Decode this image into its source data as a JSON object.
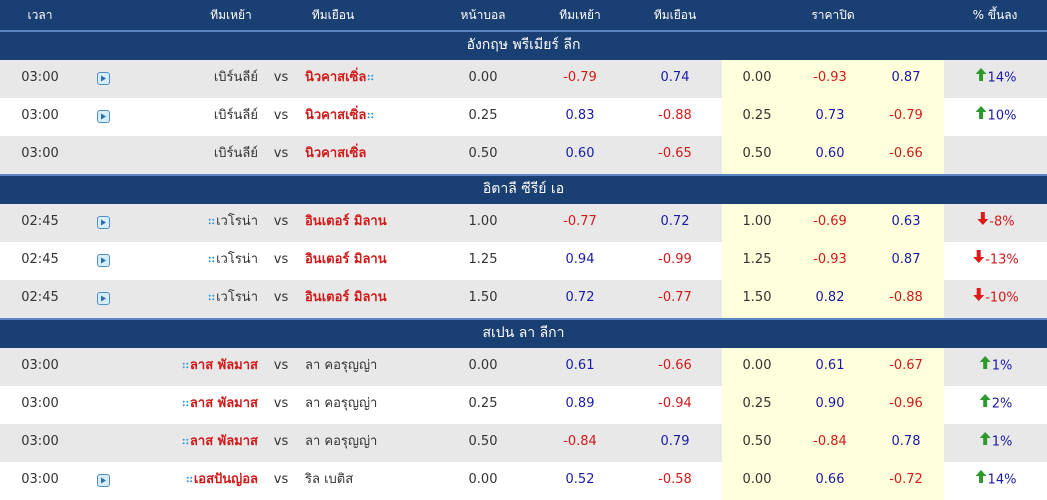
{
  "header": {
    "time": "เวลา",
    "home": "ทีมเหย้า",
    "away": "ทีมเยือน",
    "handicap": "หน้าบอล",
    "home_odds": "ทีมเหย้า",
    "away_odds": "ทีมเยือน",
    "closing": "ราคาปิด",
    "pct_change": "% ขึ้นลง"
  },
  "vs_label": "vs",
  "colors": {
    "header_bg": "#1a3f72",
    "negative": "#d11a1a",
    "positive": "#1a1aa8",
    "up_arrow": "#2e9a2e",
    "down_arrow": "#e01818",
    "closing_bg": "#ffffdc"
  },
  "leagues": [
    {
      "name": "อังกฤษ พรีเมียร์ ลีก",
      "matches": [
        {
          "time": "03:00",
          "play": true,
          "home": "เบิร์นลีย์",
          "home_fav": false,
          "home_dots": false,
          "away": "นิวคาสเซิ่ล",
          "away_fav": true,
          "away_dots": true,
          "hdp": "0.00",
          "home_odds": "-0.79",
          "away_odds": "0.74",
          "c_hdp": "0.00",
          "c_home": "-0.93",
          "c_away": "0.87",
          "pct": "14%",
          "dir": "up"
        },
        {
          "time": "03:00",
          "play": true,
          "home": "เบิร์นลีย์",
          "home_fav": false,
          "home_dots": false,
          "away": "นิวคาสเซิ่ล",
          "away_fav": true,
          "away_dots": true,
          "hdp": "0.25",
          "home_odds": "0.83",
          "away_odds": "-0.88",
          "c_hdp": "0.25",
          "c_home": "0.73",
          "c_away": "-0.79",
          "pct": "10%",
          "dir": "up"
        },
        {
          "time": "03:00",
          "play": false,
          "home": "เบิร์นลีย์",
          "home_fav": false,
          "home_dots": false,
          "away": "นิวคาสเซิ่ล",
          "away_fav": true,
          "away_dots": false,
          "hdp": "0.50",
          "home_odds": "0.60",
          "away_odds": "-0.65",
          "c_hdp": "0.50",
          "c_home": "0.60",
          "c_away": "-0.66",
          "pct": "",
          "dir": ""
        }
      ]
    },
    {
      "name": "อิตาลี ซีรีย์ เอ",
      "matches": [
        {
          "time": "02:45",
          "play": true,
          "home": "เวโรน่า",
          "home_fav": false,
          "home_dots": true,
          "away": "อินเตอร์ มิลาน",
          "away_fav": true,
          "away_dots": false,
          "hdp": "1.00",
          "home_odds": "-0.77",
          "away_odds": "0.72",
          "c_hdp": "1.00",
          "c_home": "-0.69",
          "c_away": "0.63",
          "pct": "-8%",
          "dir": "down"
        },
        {
          "time": "02:45",
          "play": true,
          "home": "เวโรน่า",
          "home_fav": false,
          "home_dots": true,
          "away": "อินเตอร์ มิลาน",
          "away_fav": true,
          "away_dots": false,
          "hdp": "1.25",
          "home_odds": "0.94",
          "away_odds": "-0.99",
          "c_hdp": "1.25",
          "c_home": "-0.93",
          "c_away": "0.87",
          "pct": "-13%",
          "dir": "down"
        },
        {
          "time": "02:45",
          "play": true,
          "home": "เวโรน่า",
          "home_fav": false,
          "home_dots": true,
          "away": "อินเตอร์ มิลาน",
          "away_fav": true,
          "away_dots": false,
          "hdp": "1.50",
          "home_odds": "0.72",
          "away_odds": "-0.77",
          "c_hdp": "1.50",
          "c_home": "0.82",
          "c_away": "-0.88",
          "pct": "-10%",
          "dir": "down"
        }
      ]
    },
    {
      "name": "สเปน ลา ลีกา",
      "matches": [
        {
          "time": "03:00",
          "play": false,
          "home": "ลาส พัลมาส",
          "home_fav": true,
          "home_dots": true,
          "away": "ลา คอรุญญ่า",
          "away_fav": false,
          "away_dots": false,
          "hdp": "0.00",
          "home_odds": "0.61",
          "away_odds": "-0.66",
          "c_hdp": "0.00",
          "c_home": "0.61",
          "c_away": "-0.67",
          "pct": "1%",
          "dir": "up"
        },
        {
          "time": "03:00",
          "play": false,
          "home": "ลาส พัลมาส",
          "home_fav": true,
          "home_dots": true,
          "away": "ลา คอรุญญ่า",
          "away_fav": false,
          "away_dots": false,
          "hdp": "0.25",
          "home_odds": "0.89",
          "away_odds": "-0.94",
          "c_hdp": "0.25",
          "c_home": "0.90",
          "c_away": "-0.96",
          "pct": "2%",
          "dir": "up"
        },
        {
          "time": "03:00",
          "play": false,
          "home": "ลาส พัลมาส",
          "home_fav": true,
          "home_dots": true,
          "away": "ลา คอรุญญ่า",
          "away_fav": false,
          "away_dots": false,
          "hdp": "0.50",
          "home_odds": "-0.84",
          "away_odds": "0.79",
          "c_hdp": "0.50",
          "c_home": "-0.84",
          "c_away": "0.78",
          "pct": "1%",
          "dir": "up"
        },
        {
          "time": "03:00",
          "play": true,
          "home": "เอสปันญ่อล",
          "home_fav": true,
          "home_dots": true,
          "away": "ริล เบติส",
          "away_fav": false,
          "away_dots": false,
          "hdp": "0.00",
          "home_odds": "0.52",
          "away_odds": "-0.58",
          "c_hdp": "0.00",
          "c_home": "0.66",
          "c_away": "-0.72",
          "pct": "14%",
          "dir": "up"
        }
      ]
    }
  ]
}
